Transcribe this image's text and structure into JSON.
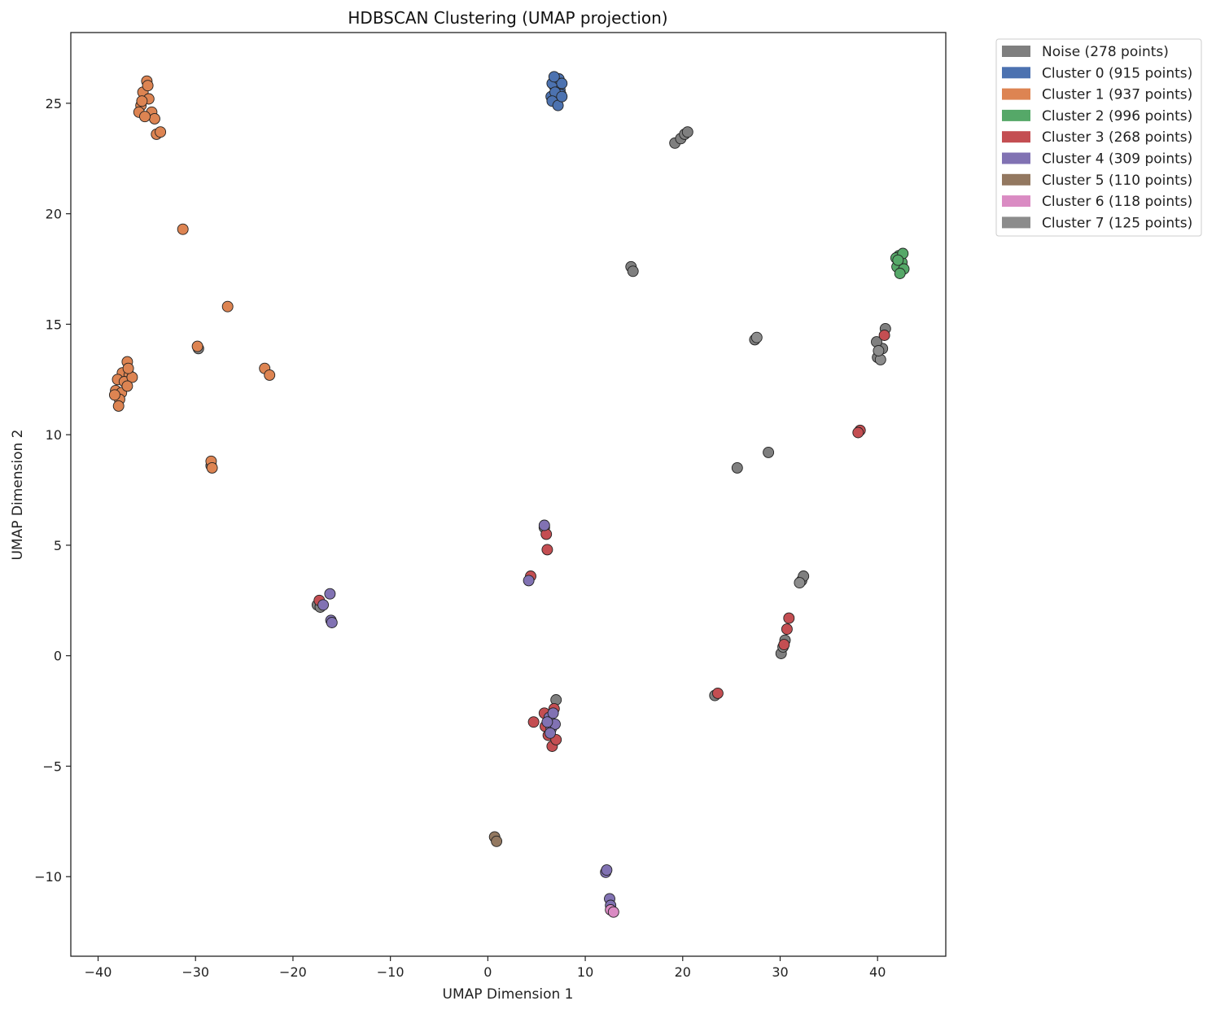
{
  "chart_data": {
    "type": "scatter",
    "title": "HDBSCAN Clustering (UMAP projection)",
    "xlabel": "UMAP Dimension 1",
    "ylabel": "UMAP Dimension 2",
    "xlim": [
      -42.8,
      47
    ],
    "ylim": [
      -13.6,
      28.2
    ],
    "xticks": [
      -40,
      -30,
      -20,
      -10,
      0,
      10,
      20,
      30,
      40
    ],
    "yticks": [
      -10,
      -5,
      0,
      5,
      10,
      15,
      20,
      25
    ],
    "grid": false,
    "legend_position": "outside-top-right",
    "legend": [
      {
        "label": "Noise (278 points)",
        "color": "#7f7f7f"
      },
      {
        "label": "Cluster 0 (915 points)",
        "color": "#4c72b0"
      },
      {
        "label": "Cluster 1 (937 points)",
        "color": "#dd8452"
      },
      {
        "label": "Cluster 2 (996 points)",
        "color": "#55a868"
      },
      {
        "label": "Cluster 3 (268 points)",
        "color": "#c44e52"
      },
      {
        "label": "Cluster 4 (309 points)",
        "color": "#8172b3"
      },
      {
        "label": "Cluster 5 (110 points)",
        "color": "#937860"
      },
      {
        "label": "Cluster 6 (118 points)",
        "color": "#da8bc3"
      },
      {
        "label": "Cluster 7 (125 points)",
        "color": "#8c8c8c"
      }
    ],
    "series": [
      {
        "color": "#7f7f7f",
        "points": [
          [
            19.2,
            23.2
          ],
          [
            19.8,
            23.4
          ],
          [
            20.2,
            23.6
          ],
          [
            20.5,
            23.7
          ],
          [
            14.7,
            17.6
          ],
          [
            14.9,
            17.4
          ],
          [
            27.4,
            14.3
          ],
          [
            40.0,
            13.5
          ],
          [
            40.5,
            13.9
          ],
          [
            40.8,
            14.8
          ],
          [
            39.9,
            14.2
          ],
          [
            25.6,
            8.5
          ],
          [
            28.8,
            9.2
          ],
          [
            32.2,
            3.4
          ],
          [
            32.4,
            3.6
          ],
          [
            30.5,
            0.7
          ],
          [
            30.1,
            0.1
          ],
          [
            23.3,
            -1.8
          ],
          [
            7.0,
            -2.0
          ],
          [
            -17.5,
            2.3
          ],
          [
            -17.2,
            2.2
          ],
          [
            5.8,
            5.8
          ],
          [
            -29.7,
            13.9
          ],
          [
            -28.4,
            8.6
          ]
        ]
      },
      {
        "color": "#8c8c8c",
        "points": [
          [
            40.3,
            13.4
          ],
          [
            40.1,
            13.8
          ],
          [
            27.6,
            14.4
          ],
          [
            30.3,
            0.4
          ],
          [
            32.0,
            3.3
          ]
        ]
      },
      {
        "color": "#4c72b0",
        "points": [
          [
            6.5,
            25.3
          ],
          [
            6.8,
            25.8
          ],
          [
            7.1,
            26.0
          ],
          [
            7.4,
            25.6
          ],
          [
            6.6,
            25.9
          ],
          [
            7.0,
            25.2
          ],
          [
            7.5,
            25.4
          ],
          [
            6.9,
            25.5
          ],
          [
            7.3,
            26.1
          ],
          [
            6.6,
            25.1
          ],
          [
            7.6,
            25.9
          ],
          [
            7.2,
            24.9
          ],
          [
            6.8,
            26.2
          ],
          [
            7.6,
            25.3
          ]
        ]
      },
      {
        "color": "#dd8452",
        "points": [
          [
            -35.0,
            26.0
          ],
          [
            -35.4,
            25.5
          ],
          [
            -34.8,
            25.2
          ],
          [
            -35.6,
            24.9
          ],
          [
            -34.5,
            24.6
          ],
          [
            -35.8,
            24.6
          ],
          [
            -34.2,
            24.3
          ],
          [
            -34.0,
            23.6
          ],
          [
            -33.6,
            23.7
          ],
          [
            -35.2,
            24.4
          ],
          [
            -34.9,
            25.8
          ],
          [
            -35.5,
            25.1
          ],
          [
            -31.3,
            19.3
          ],
          [
            -26.7,
            15.8
          ],
          [
            -29.8,
            14.0
          ],
          [
            -22.9,
            13.0
          ],
          [
            -22.4,
            12.7
          ],
          [
            -37.0,
            13.3
          ],
          [
            -37.5,
            12.8
          ],
          [
            -36.8,
            12.7
          ],
          [
            -38.0,
            12.5
          ],
          [
            -37.3,
            12.4
          ],
          [
            -36.5,
            12.6
          ],
          [
            -38.2,
            12.0
          ],
          [
            -37.6,
            11.9
          ],
          [
            -37.0,
            12.2
          ],
          [
            -37.8,
            11.6
          ],
          [
            -37.9,
            11.3
          ],
          [
            -38.3,
            11.8
          ],
          [
            -36.9,
            13.0
          ],
          [
            -28.4,
            8.8
          ],
          [
            -28.3,
            8.5
          ]
        ]
      },
      {
        "color": "#55a868",
        "points": [
          [
            42.2,
            18.1
          ],
          [
            42.5,
            17.8
          ],
          [
            42.0,
            17.6
          ],
          [
            42.7,
            17.5
          ],
          [
            42.3,
            17.3
          ],
          [
            41.9,
            18.0
          ],
          [
            42.6,
            18.2
          ],
          [
            42.1,
            17.9
          ]
        ]
      },
      {
        "color": "#c44e52",
        "points": [
          [
            40.7,
            14.5
          ],
          [
            38.2,
            10.2
          ],
          [
            38.0,
            10.1
          ],
          [
            30.9,
            1.7
          ],
          [
            30.7,
            1.2
          ],
          [
            30.4,
            0.5
          ],
          [
            23.6,
            -1.7
          ],
          [
            6.0,
            5.5
          ],
          [
            6.1,
            4.8
          ],
          [
            4.4,
            3.6
          ],
          [
            4.7,
            -3.0
          ],
          [
            5.9,
            -3.2
          ],
          [
            6.2,
            -3.6
          ],
          [
            6.6,
            -4.1
          ],
          [
            7.0,
            -3.8
          ],
          [
            6.8,
            -2.4
          ],
          [
            5.8,
            -2.6
          ],
          [
            -17.3,
            2.5
          ]
        ]
      },
      {
        "color": "#8172b3",
        "points": [
          [
            5.8,
            5.9
          ],
          [
            4.2,
            3.4
          ],
          [
            6.3,
            -2.8
          ],
          [
            6.5,
            -3.3
          ],
          [
            6.9,
            -3.1
          ],
          [
            6.1,
            -3.0
          ],
          [
            6.7,
            -2.6
          ],
          [
            6.4,
            -3.5
          ],
          [
            -16.2,
            2.8
          ],
          [
            -16.9,
            2.3
          ],
          [
            -16.1,
            1.6
          ],
          [
            -16.0,
            1.5
          ],
          [
            12.1,
            -9.8
          ],
          [
            12.2,
            -9.7
          ],
          [
            12.5,
            -11.0
          ],
          [
            12.6,
            -11.3
          ]
        ]
      },
      {
        "color": "#937860",
        "points": [
          [
            0.7,
            -8.2
          ],
          [
            0.9,
            -8.4
          ]
        ]
      },
      {
        "color": "#da8bc3",
        "points": [
          [
            12.6,
            -11.5
          ],
          [
            12.9,
            -11.6
          ]
        ]
      }
    ]
  }
}
